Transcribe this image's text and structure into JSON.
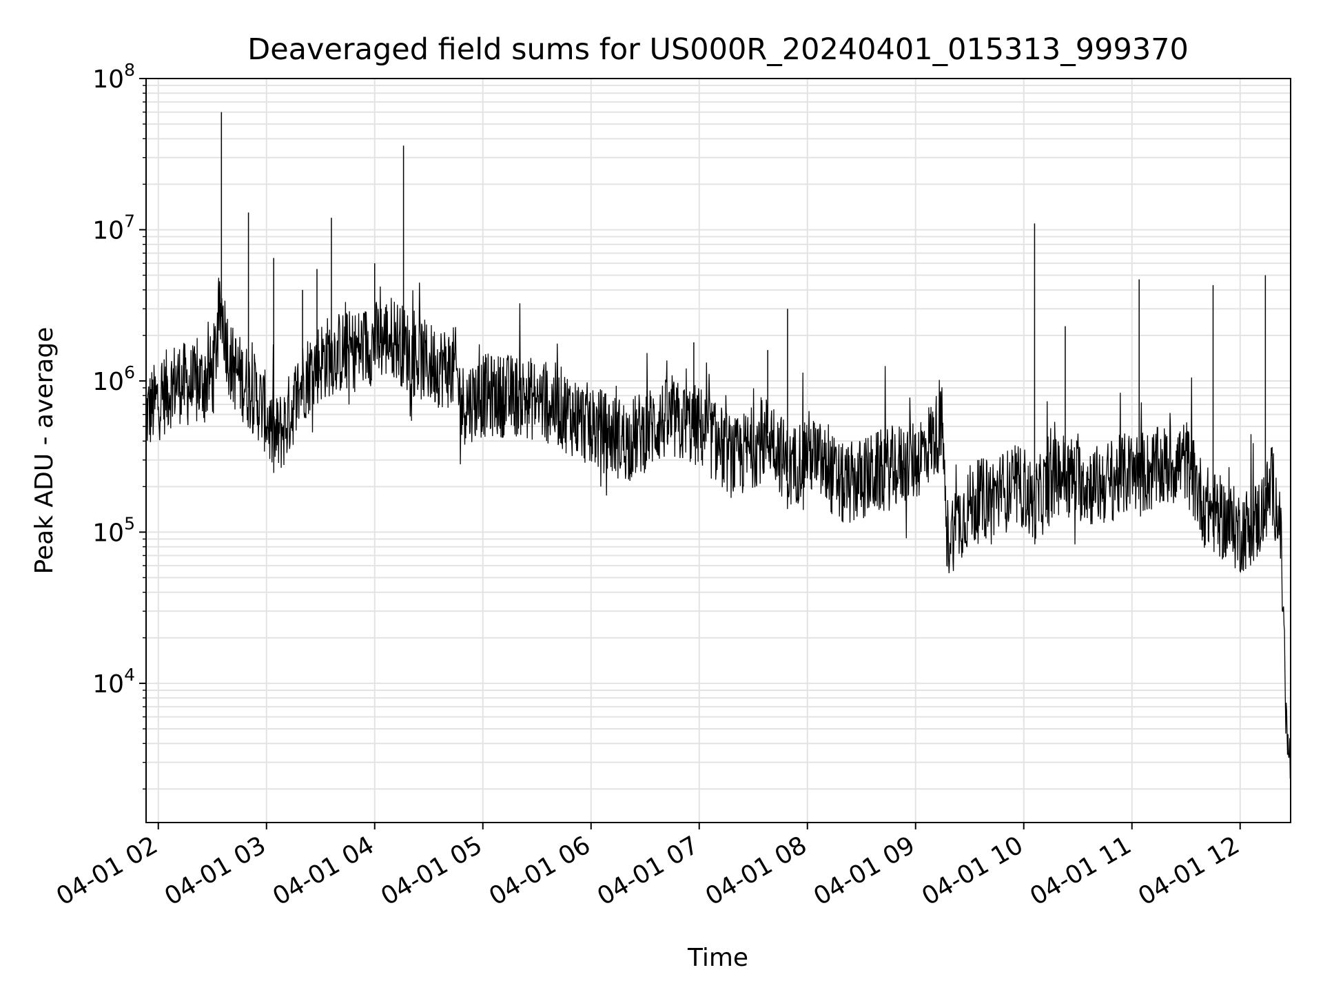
{
  "chart_data": {
    "type": "line",
    "title": "Deaveraged field sums for US000R_20240401_015313_999370",
    "xlabel": "Time",
    "ylabel": "Peak ADU - average",
    "yscale": "log",
    "ylim": [
      1200,
      100000000
    ],
    "xlim": [
      "2024-04-01T01:53:13",
      "2024-04-01T12:28:00"
    ],
    "grid": "on (major and minor)",
    "x_tick_labels": [
      "04-01 02",
      "04-01 03",
      "04-01 04",
      "04-01 05",
      "04-01 06",
      "04-01 07",
      "04-01 08",
      "04-01 09",
      "04-01 10",
      "04-01 11",
      "04-01 12"
    ],
    "y_tick_labels": [
      {
        "base": "10",
        "exp": "4"
      },
      {
        "base": "10",
        "exp": "5"
      },
      {
        "base": "10",
        "exp": "6"
      },
      {
        "base": "10",
        "exp": "7"
      },
      {
        "base": "10",
        "exp": "8"
      }
    ],
    "line_color": "#000000",
    "series": [
      {
        "x": [
          "2024-04-01T01:53:13",
          "2024-04-01T02:00",
          "2024-04-01T02:10",
          "2024-04-01T02:20",
          "2024-04-01T02:30",
          "2024-04-01T02:35",
          "2024-04-01T02:40",
          "2024-04-01T02:50",
          "2024-04-01T02:54",
          "2024-04-01T03:00",
          "2024-04-01T03:04",
          "2024-04-01T03:10",
          "2024-04-01T03:20",
          "2024-04-01T03:28",
          "2024-04-01T03:36",
          "2024-04-01T03:50",
          "2024-04-01T04:00",
          "2024-04-01T04:10",
          "2024-04-01T04:20",
          "2024-04-01T04:30",
          "2024-04-01T04:45",
          "2024-04-01T04:48",
          "2024-04-01T05:00",
          "2024-04-01T05:20",
          "2024-04-01T05:40",
          "2024-04-01T06:00",
          "2024-04-01T06:20",
          "2024-04-01T06:40",
          "2024-04-01T07:00",
          "2024-04-01T07:20",
          "2024-04-01T07:40",
          "2024-04-01T07:50",
          "2024-04-01T08:00",
          "2024-04-01T08:20",
          "2024-04-01T08:40",
          "2024-04-01T09:00",
          "2024-04-01T09:15",
          "2024-04-01T09:17",
          "2024-04-01T09:30",
          "2024-04-01T09:45",
          "2024-04-01T10:00",
          "2024-04-01T10:05",
          "2024-04-01T10:20",
          "2024-04-01T10:40",
          "2024-04-01T11:00",
          "2024-04-01T11:10",
          "2024-04-01T11:30",
          "2024-04-01T11:40",
          "2024-04-01T12:00",
          "2024-04-01T12:10",
          "2024-04-01T12:18",
          "2024-04-01T12:22",
          "2024-04-01T12:24",
          "2024-04-01T12:26",
          "2024-04-01T12:28"
        ],
        "y": [
          600000,
          750000,
          1000000,
          900000,
          1100000,
          3000000,
          1300000,
          900000,
          800000,
          600000,
          400000,
          500000,
          1000000,
          1300000,
          1500000,
          1600000,
          1800000,
          2000000,
          1500000,
          1300000,
          1200000,
          700000,
          800000,
          800000,
          700000,
          500000,
          400000,
          550000,
          500000,
          300000,
          450000,
          250000,
          350000,
          200000,
          250000,
          300000,
          500000,
          90000,
          150000,
          180000,
          200000,
          150000,
          250000,
          200000,
          250000,
          250000,
          300000,
          150000,
          100000,
          120000,
          200000,
          120000,
          30000,
          4000,
          3000
        ]
      }
    ],
    "spikes": [
      {
        "x": "2024-04-01T02:35",
        "y": 60000000
      },
      {
        "x": "2024-04-01T02:50",
        "y": 13000000
      },
      {
        "x": "2024-04-01T03:04",
        "y": 6500000
      },
      {
        "x": "2024-04-01T03:20",
        "y": 4000000
      },
      {
        "x": "2024-04-01T03:28",
        "y": 5500000
      },
      {
        "x": "2024-04-01T03:36",
        "y": 12000000
      },
      {
        "x": "2024-04-01T04:00",
        "y": 6000000
      },
      {
        "x": "2024-04-01T04:16",
        "y": 36000000
      },
      {
        "x": "2024-04-01T06:57",
        "y": 1800000
      },
      {
        "x": "2024-04-01T07:38",
        "y": 1600000
      },
      {
        "x": "2024-04-01T07:49",
        "y": 3000000
      },
      {
        "x": "2024-04-01T10:06",
        "y": 11000000
      },
      {
        "x": "2024-04-01T10:23",
        "y": 2300000
      },
      {
        "x": "2024-04-01T11:04",
        "y": 4700000
      },
      {
        "x": "2024-04-01T11:45",
        "y": 4300000
      },
      {
        "x": "2024-04-01T12:14",
        "y": 5000000
      }
    ]
  }
}
